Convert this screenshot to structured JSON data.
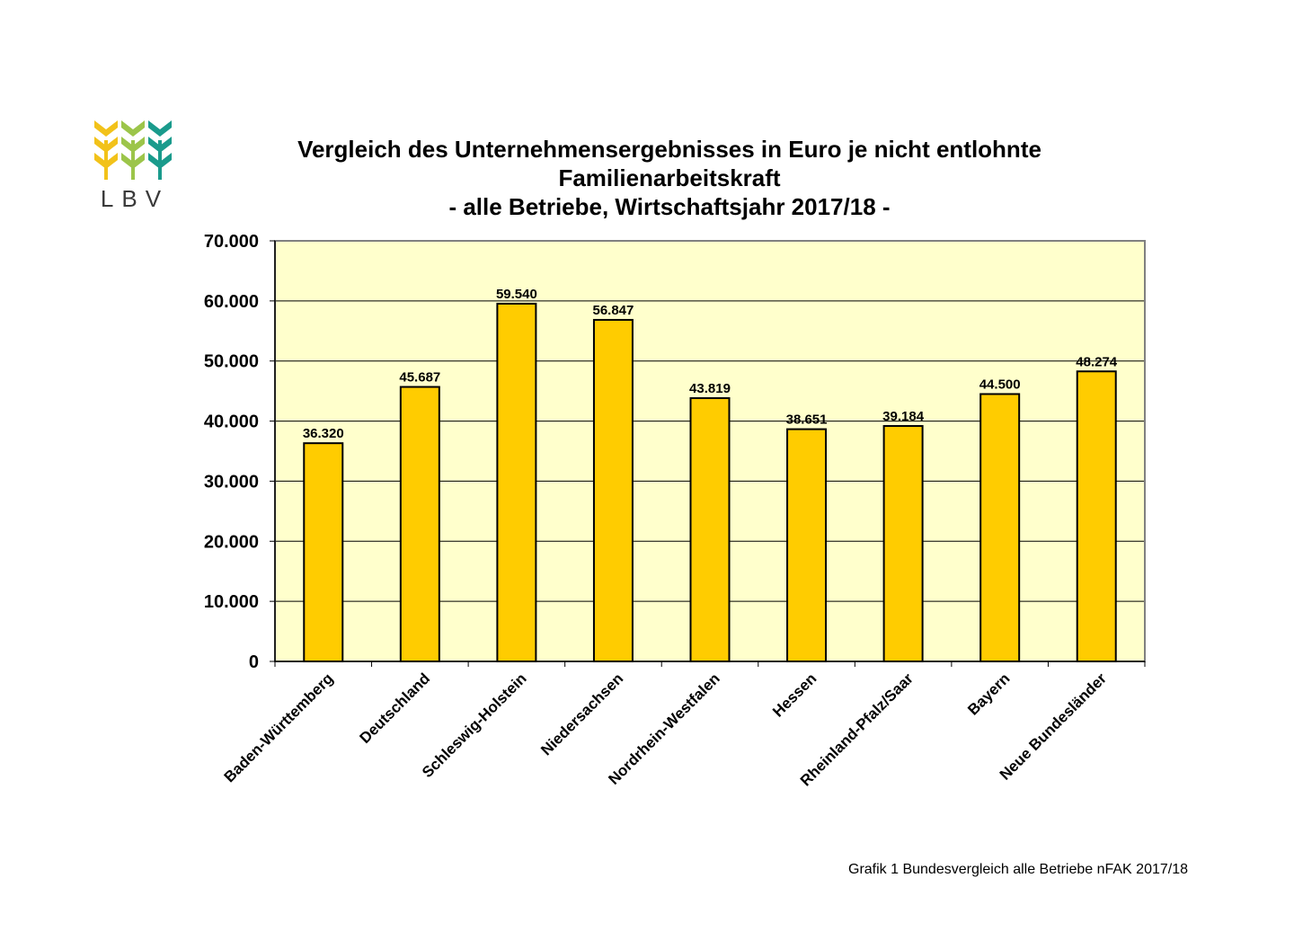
{
  "logo": {
    "text": "LBV",
    "colors": [
      "#f2c21a",
      "#9cc54a",
      "#1a9b8c"
    ]
  },
  "title_lines": [
    "Vergleich des Unternehmensergebnisses in Euro je nicht entlohnte",
    "Familienarbeitskraft",
    "- alle Betriebe, Wirtschaftsjahr 2017/18 -"
  ],
  "caption": "Grafik 1 Bundesvergleich alle Betriebe nFAK 2017/18",
  "colors": {
    "plot_background": "#ffffcc",
    "bar_fill": "#ffcc00",
    "bar_stroke": "#000000"
  },
  "chart_data": {
    "type": "bar",
    "categories": [
      "Baden-Württemberg",
      "Deutschland",
      "Schleswig-Holstein",
      "Niedersachsen",
      "Nordrhein-Westfalen",
      "Hessen",
      "Rheinland-Pfalz/Saar",
      "Bayern",
      "Neue Bundesländer"
    ],
    "values": [
      36320,
      45687,
      59540,
      56847,
      43819,
      38651,
      39184,
      44500,
      48274
    ],
    "value_labels": [
      "36.320",
      "45.687",
      "59.540",
      "56.847",
      "43.819",
      "38.651",
      "39.184",
      "44.500",
      "48.274"
    ],
    "yticks": [
      0,
      10000,
      20000,
      30000,
      40000,
      50000,
      60000,
      70000
    ],
    "ytick_labels": [
      "0",
      "10.000",
      "20.000",
      "30.000",
      "40.000",
      "50.000",
      "60.000",
      "70.000"
    ],
    "ylim": [
      0,
      70000
    ],
    "grid": true,
    "legend": "none"
  }
}
